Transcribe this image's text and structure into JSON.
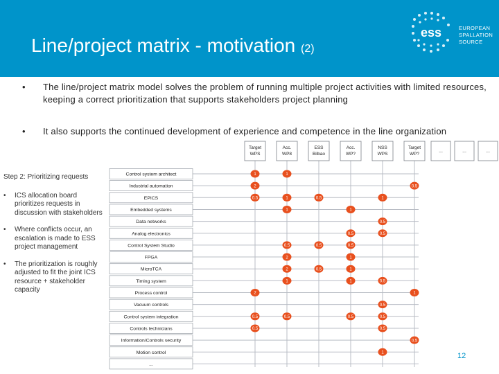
{
  "slide": {
    "title": "Line/project matrix - motivation",
    "title_suffix": "(2)",
    "page_number": "12",
    "logo_text": [
      "EUROPEAN",
      "SPALLATION",
      "SOURCE"
    ],
    "logo_letters": "ess"
  },
  "bullets": [
    "The line/project matrix model solves the problem of running multiple project activities with limited resources, keeping a correct prioritization that supports stakeholders project planning",
    "It also supports the continued development of experience and competence in the line organization"
  ],
  "left_panel": {
    "heading": "Step 2: Prioritizing requests",
    "items": [
      "ICS allocation board prioritizes requests in discussion with stakeholders",
      "Where conflicts occur, an escalation is made to ESS project management",
      "The prioritization is roughly adjusted to fit the joint ICS resource + stakeholder capacity"
    ]
  },
  "matrix": {
    "columns": [
      "Target WPS",
      "Acc. WP8",
      "ESS Bilbao",
      "Acc. WP?",
      "NSS WPS",
      "Target WP?",
      "...",
      "...",
      "..."
    ],
    "rows": [
      "Control system architect",
      "Industrial automation",
      "EPICS",
      "Embedded systems",
      "Data networks",
      "Analog electronics",
      "Control System Studio",
      "FPGA",
      "MicroTCA",
      "Timing system",
      "Process control",
      "Vacuum controls",
      "Control system integration",
      "Controls technicians",
      "Information/Controls security",
      "Motion control",
      "..."
    ],
    "allocations": [
      {
        "row": 0,
        "col": 0,
        "label": "1"
      },
      {
        "row": 0,
        "col": 1,
        "label": "1"
      },
      {
        "row": 1,
        "col": 0,
        "label": "2"
      },
      {
        "row": 1,
        "col": 5,
        "label": "0.5"
      },
      {
        "row": 2,
        "col": 0,
        "label": "0.5"
      },
      {
        "row": 2,
        "col": 1,
        "label": "1"
      },
      {
        "row": 2,
        "col": 2,
        "label": "0.5"
      },
      {
        "row": 2,
        "col": 4,
        "label": "1"
      },
      {
        "row": 3,
        "col": 1,
        "label": "1"
      },
      {
        "row": 3,
        "col": 3,
        "label": "1"
      },
      {
        "row": 4,
        "col": 4,
        "label": "0.5"
      },
      {
        "row": 5,
        "col": 3,
        "label": "0.5"
      },
      {
        "row": 5,
        "col": 4,
        "label": "0.5"
      },
      {
        "row": 6,
        "col": 1,
        "label": "0.5"
      },
      {
        "row": 6,
        "col": 2,
        "label": "0.5"
      },
      {
        "row": 6,
        "col": 3,
        "label": "0.5"
      },
      {
        "row": 7,
        "col": 1,
        "label": "2"
      },
      {
        "row": 7,
        "col": 3,
        "label": "1"
      },
      {
        "row": 8,
        "col": 1,
        "label": "2"
      },
      {
        "row": 8,
        "col": 2,
        "label": "0.5"
      },
      {
        "row": 8,
        "col": 3,
        "label": "1"
      },
      {
        "row": 9,
        "col": 1,
        "label": "1"
      },
      {
        "row": 9,
        "col": 3,
        "label": "1"
      },
      {
        "row": 9,
        "col": 4,
        "label": "0.5"
      },
      {
        "row": 10,
        "col": 0,
        "label": "2"
      },
      {
        "row": 10,
        "col": 5,
        "label": "1"
      },
      {
        "row": 11,
        "col": 4,
        "label": "0.5"
      },
      {
        "row": 12,
        "col": 0,
        "label": "0.5"
      },
      {
        "row": 12,
        "col": 1,
        "label": "0.5"
      },
      {
        "row": 12,
        "col": 3,
        "label": "0.5"
      },
      {
        "row": 12,
        "col": 4,
        "label": "0.5"
      },
      {
        "row": 13,
        "col": 0,
        "label": "0.5"
      },
      {
        "row": 13,
        "col": 4,
        "label": "0.5"
      },
      {
        "row": 14,
        "col": 5,
        "label": "0.5"
      },
      {
        "row": 15,
        "col": 4,
        "label": "1"
      }
    ]
  },
  "colors": {
    "header": "#0094ca",
    "marker": "#e8501e",
    "grid": "#b8bcc4",
    "text": "#222222"
  }
}
